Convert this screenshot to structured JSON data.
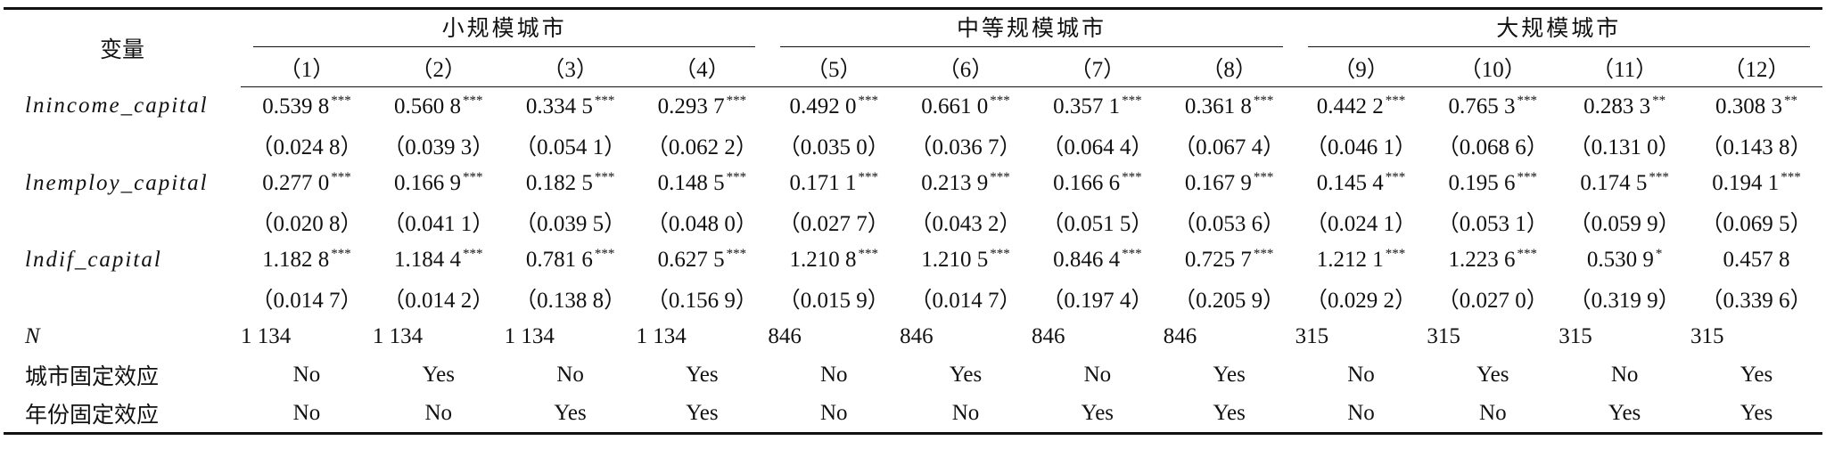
{
  "header": {
    "label": "变量",
    "groups": [
      "小规模城市",
      "中等规模城市",
      "大规模城市"
    ],
    "columns": [
      "（1）",
      "（2）",
      "（3）",
      "（4）",
      "（5）",
      "（6）",
      "（7）",
      "（8）",
      "（9）",
      "（10）",
      "（11）",
      "（12）"
    ]
  },
  "rows": [
    {
      "name": "lnincome_capital",
      "coef": [
        {
          "value": "0.539 8",
          "stars": "***"
        },
        {
          "value": "0.560 8",
          "stars": "***"
        },
        {
          "value": "0.334 5",
          "stars": "***"
        },
        {
          "value": "0.293 7",
          "stars": "***"
        },
        {
          "value": "0.492 0",
          "stars": "***"
        },
        {
          "value": "0.661 0",
          "stars": "***"
        },
        {
          "value": "0.357 1",
          "stars": "***"
        },
        {
          "value": "0.361 8",
          "stars": "***"
        },
        {
          "value": "0.442 2",
          "stars": "***"
        },
        {
          "value": "0.765 3",
          "stars": "***"
        },
        {
          "value": "0.283 3",
          "stars": "**"
        },
        {
          "value": "0.308 3",
          "stars": "**"
        }
      ],
      "se": [
        "（0.024 8）",
        "（0.039 3）",
        "（0.054 1）",
        "（0.062 2）",
        "（0.035 0）",
        "（0.036 7）",
        "（0.064 4）",
        "（0.067 4）",
        "（0.046 1）",
        "（0.068 6）",
        "（0.131 0）",
        "（0.143 8）"
      ]
    },
    {
      "name": "lnemploy_capital",
      "coef": [
        {
          "value": "0.277 0",
          "stars": "***"
        },
        {
          "value": "0.166 9",
          "stars": "***"
        },
        {
          "value": "0.182 5",
          "stars": "***"
        },
        {
          "value": "0.148 5",
          "stars": "***"
        },
        {
          "value": "0.171 1",
          "stars": "***"
        },
        {
          "value": "0.213 9",
          "stars": "***"
        },
        {
          "value": "0.166 6",
          "stars": "***"
        },
        {
          "value": "0.167 9",
          "stars": "***"
        },
        {
          "value": "0.145 4",
          "stars": "***"
        },
        {
          "value": "0.195 6",
          "stars": "***"
        },
        {
          "value": "0.174 5",
          "stars": "***"
        },
        {
          "value": "0.194 1",
          "stars": "***"
        }
      ],
      "se": [
        "（0.020 8）",
        "（0.041 1）",
        "（0.039 5）",
        "（0.048 0）",
        "（0.027 7）",
        "（0.043 2）",
        "（0.051 5）",
        "（0.053 6）",
        "（0.024 1）",
        "（0.053 1）",
        "（0.059 9）",
        "（0.069 5）"
      ]
    },
    {
      "name": "lndif_capital",
      "coef": [
        {
          "value": "1.182 8",
          "stars": "***"
        },
        {
          "value": "1.184 4",
          "stars": "***"
        },
        {
          "value": "0.781 6",
          "stars": "***"
        },
        {
          "value": "0.627 5",
          "stars": "***"
        },
        {
          "value": "1.210 8",
          "stars": "***"
        },
        {
          "value": "1.210 5",
          "stars": "***"
        },
        {
          "value": "0.846 4",
          "stars": "***"
        },
        {
          "value": "0.725 7",
          "stars": "***"
        },
        {
          "value": "1.212 1",
          "stars": "***"
        },
        {
          "value": "1.223 6",
          "stars": "***"
        },
        {
          "value": "0.530 9",
          "stars": "*"
        },
        {
          "value": "0.457 8"
        }
      ],
      "se": [
        "（0.014 7）",
        "（0.014 2）",
        "（0.138 8）",
        "（0.156 9）",
        "（0.015 9）",
        "（0.014 7）",
        "（0.197 4）",
        "（0.205 9）",
        "（0.029 2）",
        "（0.027 0）",
        "（0.319 9）",
        "（0.339 6）"
      ]
    }
  ],
  "footer_rows": [
    {
      "name": "N",
      "values": [
        "1 134",
        "1 134",
        "1 134",
        "1 134",
        "846",
        "846",
        "846",
        "846",
        "315",
        "315",
        "315",
        "315"
      ]
    },
    {
      "name": "城市固定效应",
      "values": [
        "No",
        "Yes",
        "No",
        "Yes",
        "No",
        "Yes",
        "No",
        "Yes",
        "No",
        "Yes",
        "No",
        "Yes"
      ]
    },
    {
      "name": "年份固定效应",
      "values": [
        "No",
        "No",
        "Yes",
        "Yes",
        "No",
        "No",
        "Yes",
        "Yes",
        "No",
        "No",
        "Yes",
        "Yes"
      ]
    }
  ]
}
